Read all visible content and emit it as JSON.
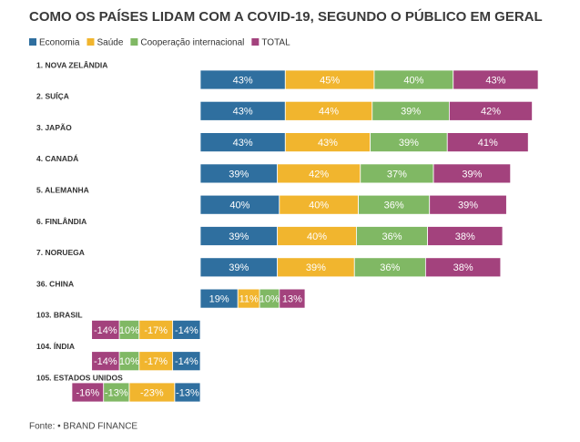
{
  "chart_data": {
    "type": "bar",
    "title": "COMO OS PAÍSES LIDAM COM A COVID-19, SEGUNDO O PÚBLICO EM GERAL",
    "categories": [
      "1. NOVA ZELÂNDIA",
      "2. SUÍÇA",
      "3. JAPÃO",
      "4. CANADÁ",
      "5. ALEMANHA",
      "6. FINLÂNDIA",
      "7. NORUEGA",
      "36. CHINA",
      "103. BRASIL",
      "104. ÍNDIA",
      "105. ESTADOS UNIDOS"
    ],
    "series": [
      {
        "name": "Economia",
        "color": "#2f6f9f",
        "values": [
          43,
          43,
          43,
          39,
          40,
          39,
          39,
          19,
          -14,
          -14,
          -13
        ],
        "value_labels": [
          "43%",
          "43%",
          "43%",
          "39%",
          "40%",
          "39%",
          "39%",
          "19%",
          "-14%",
          "-14%",
          "-13%"
        ]
      },
      {
        "name": "Saúde",
        "color": "#f1b52e",
        "values": [
          45,
          44,
          43,
          42,
          40,
          40,
          39,
          11,
          -17,
          -17,
          -23
        ],
        "value_labels": [
          "45%",
          "44%",
          "43%",
          "42%",
          "40%",
          "40%",
          "39%",
          "11%",
          "-17%",
          "-17%",
          "-23%"
        ]
      },
      {
        "name": "Cooperação internacional",
        "color": "#80b864",
        "values": [
          40,
          39,
          39,
          37,
          36,
          36,
          36,
          10,
          10,
          10,
          -13
        ],
        "value_labels": [
          "40%",
          "39%",
          "39%",
          "37%",
          "36%",
          "36%",
          "36%",
          "10%",
          "10%",
          "10%",
          "-13%"
        ]
      },
      {
        "name": "TOTAL",
        "color": "#a3427d",
        "values": [
          43,
          42,
          41,
          39,
          39,
          38,
          38,
          13,
          -14,
          -14,
          -16
        ],
        "value_labels": [
          "43%",
          "42%",
          "41%",
          "39%",
          "39%",
          "38%",
          "38%",
          "13%",
          "-14%",
          "-14%",
          "-16%"
        ]
      }
    ],
    "source": "Fonte: • BRAND FINANCE"
  }
}
